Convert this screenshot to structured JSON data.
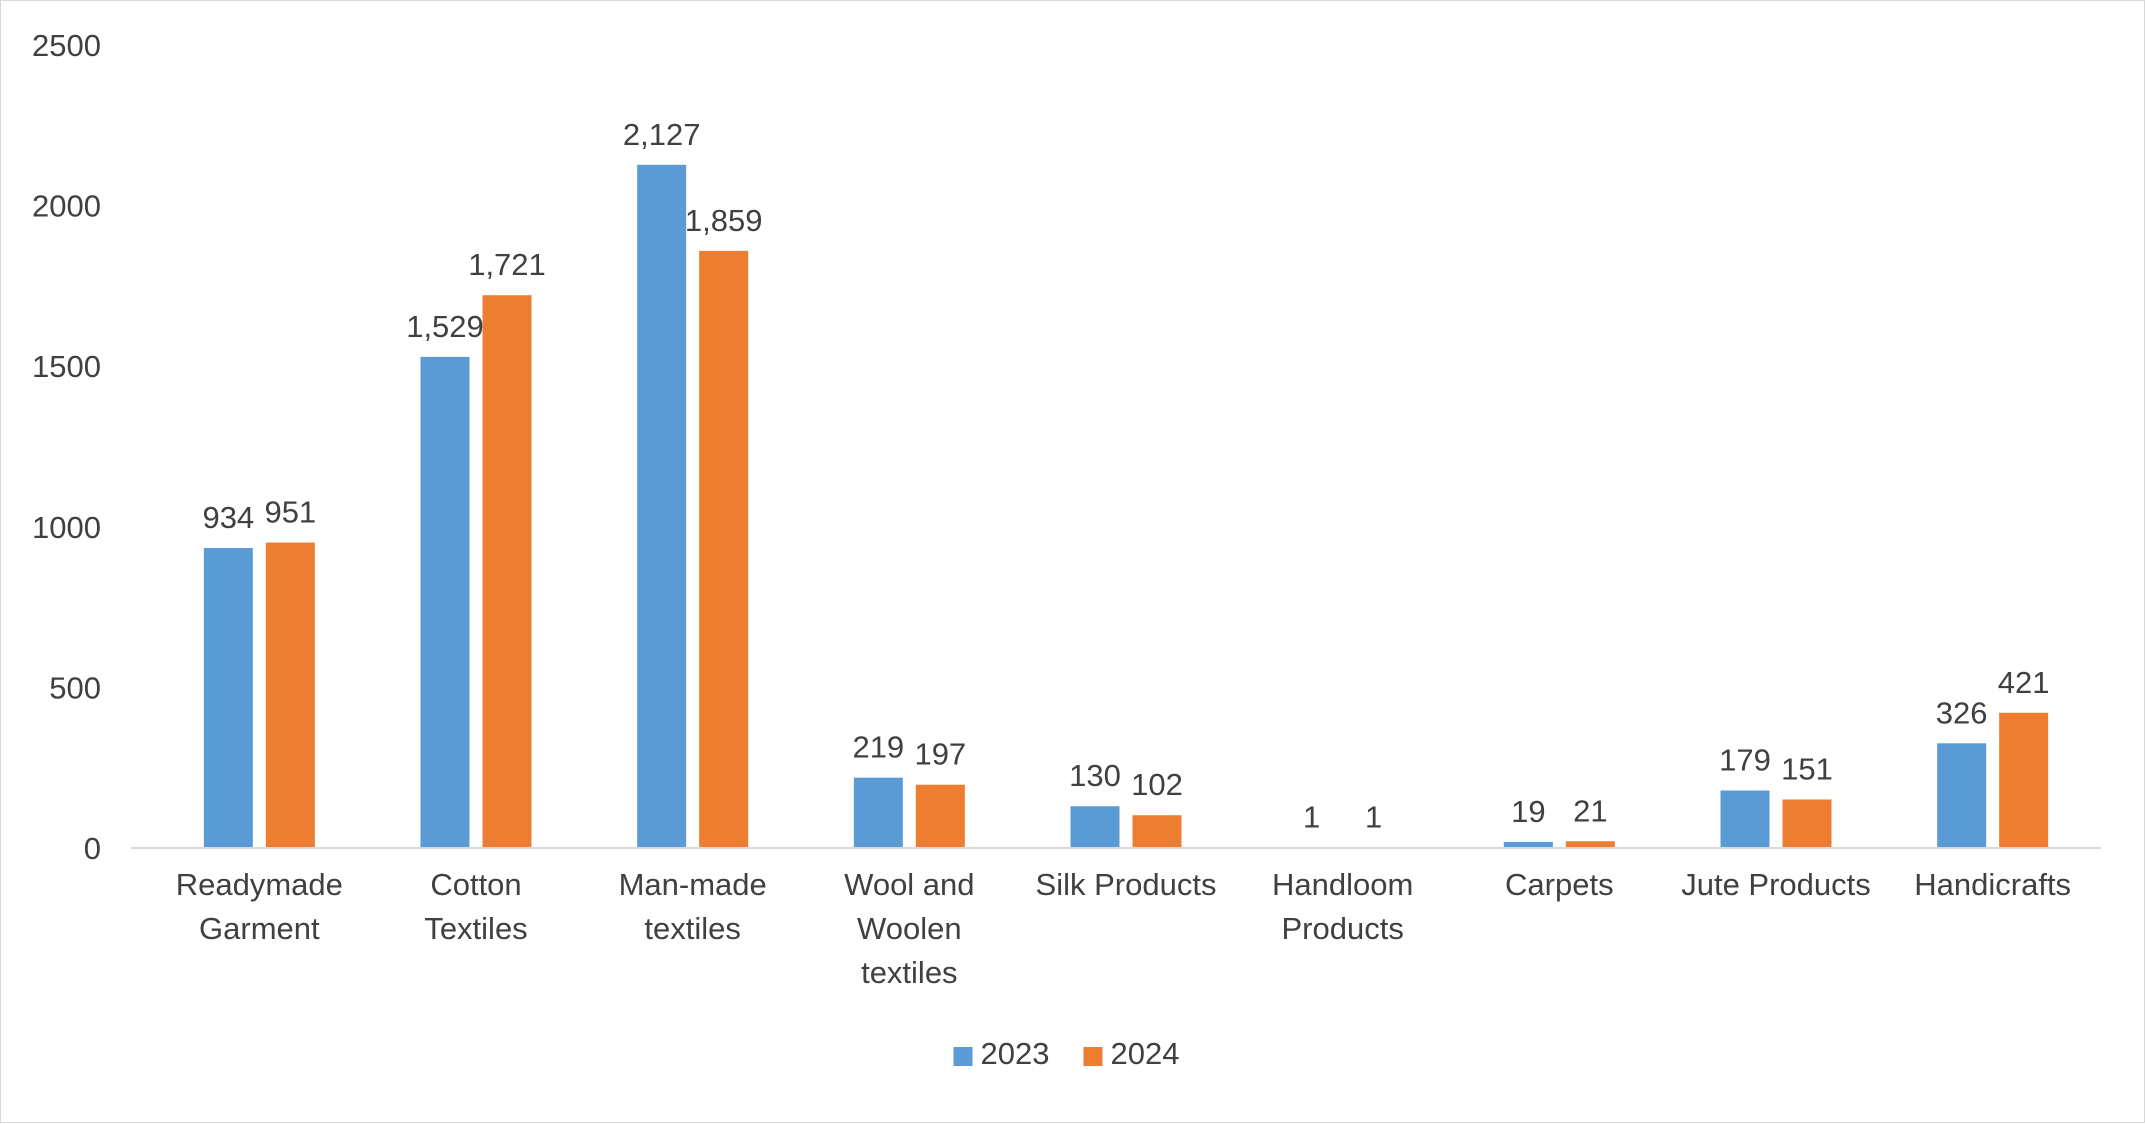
{
  "chart_data": {
    "type": "bar",
    "title": "",
    "xlabel": "",
    "ylabel": "",
    "ylim": [
      0,
      2500
    ],
    "yticks": [
      0,
      500,
      1000,
      1500,
      2000,
      2500
    ],
    "grid": false,
    "legend_position": "bottom",
    "categories": [
      [
        "Readymade",
        "Garment"
      ],
      [
        "Cotton",
        "Textiles"
      ],
      [
        "Man-made",
        "textiles"
      ],
      [
        "Wool and",
        "Woolen",
        "textiles"
      ],
      [
        "Silk Products"
      ],
      [
        "Handloom",
        "Products"
      ],
      [
        "Carpets"
      ],
      [
        "Jute Products"
      ],
      [
        "Handicrafts"
      ]
    ],
    "series": [
      {
        "name": "2023",
        "color": "#5B9BD5",
        "values": [
          934,
          1529,
          2127,
          219,
          130,
          1,
          19,
          179,
          326
        ],
        "labels": [
          "934",
          "1,529",
          "2,127",
          "219",
          "130",
          "1",
          "19",
          "179",
          "326"
        ]
      },
      {
        "name": "2024",
        "color": "#ED7D31",
        "values": [
          951,
          1721,
          1859,
          197,
          102,
          1,
          21,
          151,
          421
        ],
        "labels": [
          "951",
          "1,721",
          "1,859",
          "197",
          "102",
          "1",
          "21",
          "151",
          "421"
        ]
      }
    ]
  }
}
